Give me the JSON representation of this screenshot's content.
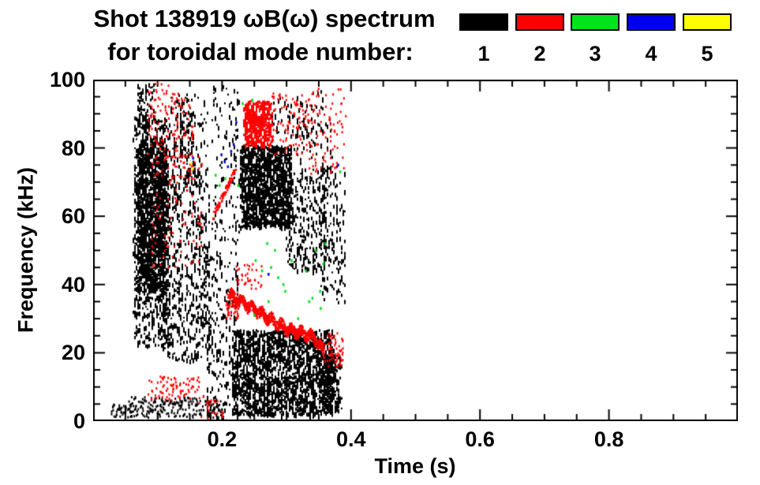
{
  "header": {
    "title_line1": "Shot 138919 ωB(ω) spectrum",
    "title_line2": "for toroidal mode number:"
  },
  "chart_data": {
    "type": "scatter",
    "subtype": "mode-number-spectrogram",
    "title": "Shot 138919 ωB(ω) spectrum for toroidal mode number: 1 2 3 4 5",
    "xlabel": "Time (s)",
    "ylabel": "Frequency (kHz)",
    "xlim": [
      0.0,
      1.0
    ],
    "ylim": [
      0,
      100
    ],
    "grid": false,
    "xticks_major": [
      0.2,
      0.4,
      0.6,
      0.8
    ],
    "xtick_labels": [
      "0.2",
      "0.4",
      "0.6",
      "0.8"
    ],
    "xtick_minor_step": 0.05,
    "yticks_major": [
      0,
      20,
      40,
      60,
      80,
      100
    ],
    "ytick_labels": [
      "0",
      "20",
      "40",
      "60",
      "80",
      "100"
    ],
    "ytick_minor_step": 5,
    "legend": {
      "position": "top-right",
      "entries": [
        {
          "label": "1",
          "color": "#000000"
        },
        {
          "label": "2",
          "color": "#ff0000"
        },
        {
          "label": "3",
          "color": "#00e41e"
        },
        {
          "label": "4",
          "color": "#0000ee"
        },
        {
          "label": "5",
          "color": "#ffff00"
        }
      ]
    },
    "series": [
      {
        "name": "n=1",
        "mode": 1,
        "color": "#000000",
        "clusters": [
          {
            "kind": "vdash",
            "t": [
              0.062,
              0.118
            ],
            "f": [
              22,
              90
            ],
            "n": 900
          },
          {
            "kind": "vdash",
            "t": [
              0.068,
              0.112
            ],
            "f": [
              38,
              82
            ],
            "n": 1000
          },
          {
            "kind": "vdash",
            "t": [
              0.068,
              0.095
            ],
            "f": [
              86,
              99
            ],
            "n": 80
          },
          {
            "kind": "vdash",
            "t": [
              0.1,
              0.18
            ],
            "f": [
              18,
              75
            ],
            "n": 650
          },
          {
            "kind": "vdash",
            "t": [
              0.115,
              0.178
            ],
            "f": [
              72,
              95
            ],
            "n": 100
          },
          {
            "kind": "vdash",
            "t": [
              0.175,
              0.225
            ],
            "f": [
              0,
              50
            ],
            "n": 240
          },
          {
            "kind": "vdash",
            "t": [
              0.183,
              0.228
            ],
            "f": [
              52,
              99
            ],
            "n": 120
          },
          {
            "kind": "vdash",
            "t": [
              0.228,
              0.307
            ],
            "f": [
              57,
              81
            ],
            "n": 1300
          },
          {
            "kind": "vdash",
            "t": [
              0.298,
              0.362
            ],
            "f": [
              44,
              72
            ],
            "n": 280
          },
          {
            "kind": "vdash",
            "t": [
              0.3,
              0.372
            ],
            "f": [
              70,
              88
            ],
            "n": 70
          },
          {
            "kind": "vdash",
            "t": [
              0.215,
              0.372
            ],
            "f": [
              2,
              27
            ],
            "n": 1900
          },
          {
            "kind": "dot",
            "t": [
              0.055,
              0.2
            ],
            "f": [
              1,
              7
            ],
            "n": 220
          },
          {
            "kind": "vdash",
            "t": [
              0.275,
              0.358
            ],
            "f": [
              84,
              97
            ],
            "n": 70
          },
          {
            "kind": "vdash",
            "t": [
              0.352,
              0.39
            ],
            "f": [
              35,
              75
            ],
            "n": 150
          },
          {
            "kind": "vdash",
            "t": [
              0.355,
              0.385
            ],
            "f": [
              3,
              20
            ],
            "n": 160
          },
          {
            "kind": "dot",
            "t": [
              0.028,
              0.058
            ],
            "f": [
              1,
              5
            ],
            "n": 40
          },
          {
            "kind": "vdash",
            "t": [
              0.125,
              0.158
            ],
            "f": [
              78,
              96
            ],
            "n": 60
          }
        ]
      },
      {
        "name": "n=2",
        "mode": 2,
        "color": "#ff0000",
        "clusters": [
          {
            "kind": "chirp",
            "t": [
              0.212,
              0.358
            ],
            "f_path": [
              [
                0.212,
                37
              ],
              [
                0.26,
                31.5
              ],
              [
                0.3,
                27
              ],
              [
                0.33,
                25.5
              ],
              [
                0.345,
                24
              ],
              [
                0.358,
                20
              ]
            ],
            "thickness": 3,
            "n": 850
          },
          {
            "kind": "vdash",
            "t": [
              0.233,
              0.276
            ],
            "f": [
              81,
              94
            ],
            "n": 380
          },
          {
            "kind": "dot",
            "t": [
              0.276,
              0.335
            ],
            "f": [
              78,
              96
            ],
            "n": 90
          },
          {
            "kind": "dot",
            "t": [
              0.335,
              0.392
            ],
            "f": [
              72,
              98
            ],
            "n": 90
          },
          {
            "kind": "dot",
            "t": [
              0.085,
              0.165
            ],
            "f": [
              6,
              13
            ],
            "n": 80
          },
          {
            "kind": "dot",
            "t": [
              0.085,
              0.118
            ],
            "f": [
              75,
              99
            ],
            "n": 70
          },
          {
            "kind": "dot",
            "t": [
              0.122,
              0.158
            ],
            "f": [
              70,
              96
            ],
            "n": 80
          },
          {
            "kind": "line",
            "t": [
              0.186,
              0.222
            ],
            "f": [
              60,
              74
            ],
            "thickness": 2,
            "n": 90
          },
          {
            "kind": "dot",
            "t": [
              0.09,
              0.17
            ],
            "f": [
              45,
              78
            ],
            "n": 100
          },
          {
            "kind": "dot",
            "t": [
              0.222,
              0.262
            ],
            "f": [
              38,
              46
            ],
            "n": 35
          },
          {
            "kind": "dot",
            "t": [
              0.16,
              0.205
            ],
            "f": [
              0,
              8
            ],
            "n": 25
          },
          {
            "kind": "dot",
            "t": [
              0.358,
              0.388
            ],
            "f": [
              16,
              26
            ],
            "n": 60
          },
          {
            "kind": "dot",
            "t": [
              0.205,
              0.225
            ],
            "f": [
              30,
              38
            ],
            "n": 60
          }
        ]
      },
      {
        "name": "n=3",
        "mode": 3,
        "color": "#00e41e",
        "points": [
          [
            0.19,
            72
          ],
          [
            0.196,
            69
          ],
          [
            0.205,
            71
          ],
          [
            0.225,
            69
          ],
          [
            0.232,
            93
          ],
          [
            0.247,
            94
          ],
          [
            0.25,
            31
          ],
          [
            0.252,
            47
          ],
          [
            0.262,
            44
          ],
          [
            0.27,
            52
          ],
          [
            0.272,
            35
          ],
          [
            0.276,
            45
          ],
          [
            0.282,
            50
          ],
          [
            0.287,
            42
          ],
          [
            0.295,
            40
          ],
          [
            0.298,
            38
          ],
          [
            0.308,
            47
          ],
          [
            0.318,
            30
          ],
          [
            0.33,
            44
          ],
          [
            0.335,
            35
          ],
          [
            0.34,
            36
          ],
          [
            0.345,
            50
          ],
          [
            0.352,
            38
          ],
          [
            0.353,
            33
          ],
          [
            0.357,
            46
          ],
          [
            0.36,
            52
          ],
          [
            0.383,
            73
          ]
        ]
      },
      {
        "name": "n=4",
        "mode": 4,
        "color": "#0000ee",
        "points": [
          [
            0.155,
            77
          ],
          [
            0.199,
            78
          ],
          [
            0.204,
            76
          ],
          [
            0.209,
            74.5
          ],
          [
            0.214,
            79
          ],
          [
            0.218,
            81
          ],
          [
            0.222,
            87.5
          ],
          [
            0.272,
            43
          ],
          [
            0.38,
            75
          ]
        ]
      },
      {
        "name": "n=5",
        "mode": 5,
        "color": "#ffff00",
        "points": [
          [
            0.152,
            75.5
          ],
          [
            0.1545,
            74
          ]
        ]
      }
    ]
  }
}
